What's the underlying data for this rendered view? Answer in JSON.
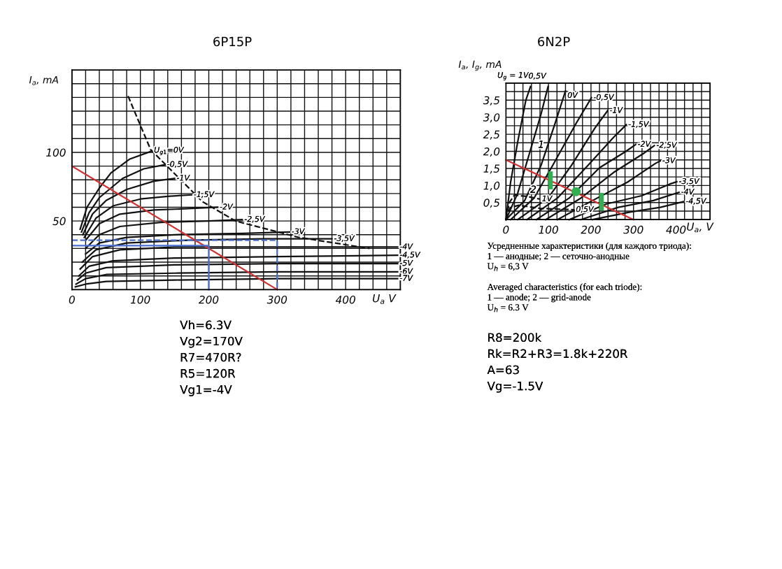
{
  "chart_data": [
    {
      "type": "line",
      "title": "6P15P",
      "xlabel": "U$_{a}$ V",
      "ylabel": "I$_{a}$, mA",
      "xlim": [
        0,
        480
      ],
      "ylim": [
        0,
        160
      ],
      "xticks": [
        0,
        {
          "value": 20,
          "label": null
        },
        {
          "value": 40,
          "label": null
        },
        {
          "value": 60,
          "label": null
        },
        {
          "value": 80,
          "label": null
        },
        100,
        {
          "value": 120,
          "label": null
        },
        {
          "value": 140,
          "label": null
        },
        {
          "value": 160,
          "label": null
        },
        {
          "value": 180,
          "label": null
        },
        200,
        {
          "value": 220,
          "label": null
        },
        {
          "value": 240,
          "label": null
        },
        {
          "value": 260,
          "label": null
        },
        {
          "value": 280,
          "label": null
        },
        300,
        {
          "value": 320,
          "label": null
        },
        {
          "value": 340,
          "label": null
        },
        {
          "value": 360,
          "label": null
        },
        {
          "value": 380,
          "label": null
        },
        400,
        {
          "value": 420,
          "label": null
        },
        {
          "value": 440,
          "label": null
        },
        {
          "value": 460,
          "label": null
        },
        {
          "value": 480,
          "label": null
        }
      ],
      "yticks": [
        {
          "value": 0,
          "label": null
        },
        {
          "value": 10,
          "label": null
        },
        {
          "value": 20,
          "label": null
        },
        {
          "value": 30,
          "label": null
        },
        {
          "value": 40,
          "label": null
        },
        50,
        {
          "value": 60,
          "label": null
        },
        {
          "value": 70,
          "label": null
        },
        {
          "value": 80,
          "label": null
        },
        {
          "value": 90,
          "label": null
        },
        100,
        {
          "value": 110,
          "label": null
        },
        {
          "value": 120,
          "label": null
        },
        {
          "value": 130,
          "label": null
        },
        {
          "value": 140,
          "label": null
        },
        {
          "value": 150,
          "label": null
        },
        {
          "value": 160,
          "label": null
        }
      ],
      "grid": true,
      "legend": false,
      "marker": "none",
      "series": [
        {
          "name": "U$_{g1}$=0V",
          "color": "#111111",
          "x": [
            12,
            22,
            40,
            57,
            84,
            117
          ],
          "values": [
            44,
            60,
            74,
            85,
            95,
            101
          ]
        },
        {
          "name": "-0,5V",
          "color": "#111111",
          "x": [
            14,
            25,
            40,
            74,
            105,
            136
          ],
          "values": [
            42,
            56,
            67,
            81,
            88,
            91
          ]
        },
        {
          "name": "-1V",
          "color": "#111111",
          "x": [
            16,
            30,
            50,
            80,
            120,
            150
          ],
          "values": [
            40,
            55,
            65,
            73,
            79,
            81
          ]
        },
        {
          "name": "-1,5V",
          "color": "#111111",
          "x": [
            18,
            35,
            60,
            100,
            140,
            175
          ],
          "values": [
            38,
            52,
            61,
            66,
            68,
            69
          ]
        },
        {
          "name": "-2V",
          "color": "#111111",
          "x": [
            20,
            40,
            70,
            120,
            170,
            213
          ],
          "values": [
            36,
            48,
            55,
            58,
            59,
            60
          ]
        },
        {
          "name": "-2,5V",
          "color": "#111111",
          "x": [
            20,
            40,
            70,
            130,
            200,
            249
          ],
          "values": [
            30,
            40,
            46,
            49,
            50,
            51
          ]
        },
        {
          "name": "-3V",
          "color": "#111111",
          "x": [
            20,
            40,
            80,
            150,
            250,
            318
          ],
          "values": [
            26,
            34,
            38,
            40,
            41,
            42
          ]
        },
        {
          "name": "-3,5V",
          "color": "#111111",
          "x": [
            15,
            35,
            80,
            170,
            280,
            380
          ],
          "values": [
            20,
            29,
            34,
            36,
            37,
            37
          ]
        },
        {
          "name": "-4V",
          "color": "#111111",
          "x": [
            12,
            30,
            70,
            150,
            300,
            476
          ],
          "values": [
            15,
            24,
            29,
            31,
            31,
            31
          ]
        },
        {
          "name": "-4,5V",
          "color": "#111111",
          "x": [
            10,
            25,
            60,
            150,
            300,
            476
          ],
          "values": [
            10,
            17,
            21,
            23,
            24,
            25
          ]
        },
        {
          "name": "-5V",
          "color": "#111111",
          "x": [
            8,
            20,
            50,
            150,
            300,
            476
          ],
          "values": [
            7,
            12,
            16,
            18,
            19,
            19
          ]
        },
        {
          "name": "-6V",
          "color": "#111111",
          "x": [
            6,
            20,
            50,
            150,
            300,
            476
          ],
          "values": [
            4,
            8,
            11,
            12,
            13,
            13
          ]
        },
        {
          "name": "-7V",
          "color": "#111111",
          "x": [
            5,
            20,
            50,
            150,
            300,
            476
          ],
          "values": [
            2,
            4,
            6,
            7,
            8,
            8
          ]
        },
        {
          "color": "#111111",
          "line_style": "dashed",
          "x": [
            82,
            115,
            191,
            239,
            332,
            435
          ],
          "values": [
            141,
            102,
            64,
            50,
            38,
            30
          ]
        },
        {
          "color": "#d03030",
          "x": [
            0,
            300
          ],
          "values": [
            90,
            0
          ]
        },
        {
          "color": "#4a6fd0",
          "x": [
            0,
            200,
            200
          ],
          "values": [
            32,
            32,
            0
          ]
        },
        {
          "color": "#4a6fd0",
          "line_style": "dashed",
          "x": [
            0,
            300,
            300
          ],
          "values": [
            36,
            36,
            0
          ]
        }
      ],
      "annotations": [
        "Vh=6.3V\nVg2=170V\nR7=470R?\nR5=120R\nVg1=-4V"
      ]
    },
    {
      "type": "line",
      "title": "6N2P",
      "xlabel": "U$_{a}$, V",
      "ylabel": "I$_{a}$, I$_{g}$, mA",
      "xlim": [
        0,
        480
      ],
      "ylim": [
        0,
        4.0
      ],
      "xticks": [
        0,
        {
          "value": 20,
          "label": null
        },
        {
          "value": 40,
          "label": null
        },
        {
          "value": 60,
          "label": null
        },
        {
          "value": 80,
          "label": null
        },
        100,
        {
          "value": 120,
          "label": null
        },
        {
          "value": 140,
          "label": null
        },
        {
          "value": 160,
          "label": null
        },
        {
          "value": 180,
          "label": null
        },
        200,
        {
          "value": 220,
          "label": null
        },
        {
          "value": 240,
          "label": null
        },
        {
          "value": 260,
          "label": null
        },
        {
          "value": 280,
          "label": null
        },
        300,
        {
          "value": 320,
          "label": null
        },
        {
          "value": 340,
          "label": null
        },
        {
          "value": 360,
          "label": null
        },
        {
          "value": 380,
          "label": null
        },
        400,
        {
          "value": 420,
          "label": null
        },
        {
          "value": 440,
          "label": null
        },
        {
          "value": 460,
          "label": null
        },
        {
          "value": 480,
          "label": null
        }
      ],
      "yticks": [
        {
          "value": 0,
          "label": null
        },
        {
          "value": 0.25,
          "label": null
        },
        {
          "value": 0.5,
          "label": "0,5"
        },
        {
          "value": 0.75,
          "label": null
        },
        {
          "value": 1.0,
          "label": "1,0"
        },
        {
          "value": 1.25,
          "label": null
        },
        {
          "value": 1.5,
          "label": "1,5"
        },
        {
          "value": 1.75,
          "label": null
        },
        {
          "value": 2.0,
          "label": "2,0"
        },
        {
          "value": 2.25,
          "label": null
        },
        {
          "value": 2.5,
          "label": "2,5"
        },
        {
          "value": 2.75,
          "label": null
        },
        {
          "value": 3.0,
          "label": "3,0"
        },
        {
          "value": 3.25,
          "label": null
        },
        {
          "value": 3.5,
          "label": "3,5"
        },
        {
          "value": 3.75,
          "label": null
        },
        {
          "value": 4.0,
          "label": null
        }
      ],
      "grid": true,
      "legend": false,
      "marker": "none",
      "series": [
        {
          "name": "U$_{g}$ = 1V",
          "color": "#111111",
          "x": [
            0,
            11,
            27.5,
            46.8,
            57.8
          ],
          "values": [
            0,
            1.1,
            2.27,
            3.5,
            3.9
          ]
        },
        {
          "name": "0,5V",
          "color": "#111111",
          "x": [
            0,
            27.5,
            55,
            82.5,
            99
          ],
          "values": [
            0,
            0.77,
            1.93,
            3.09,
            3.9
          ]
        },
        {
          "name": "0V",
          "color": "#111111",
          "x": [
            0,
            44,
            82.5,
            115.6,
            140
          ],
          "values": [
            0,
            0.56,
            1.59,
            2.82,
            3.77
          ]
        },
        {
          "name": "-0,5V",
          "color": "#111111",
          "x": [
            11,
            66,
            110,
            165,
            201
          ],
          "values": [
            0,
            0.63,
            1.59,
            2.82,
            3.57
          ]
        },
        {
          "name": "-1V",
          "color": "#111111",
          "x": [
            27.5,
            99,
            154,
            209,
            239
          ],
          "values": [
            0,
            0.63,
            1.59,
            2.68,
            3.19
          ]
        },
        {
          "name": "-1,5V",
          "color": "#111111",
          "x": [
            49.5,
            121,
            193,
            253,
            283
          ],
          "values": [
            0,
            0.63,
            1.59,
            2.41,
            2.78
          ]
        },
        {
          "name": "-2V",
          "color": "#111111",
          "x": [
            71.5,
            148.6,
            220,
            281,
            305
          ],
          "values": [
            0,
            0.63,
            1.52,
            1.99,
            2.2
          ]
        },
        {
          "name": "-2,5V",
          "color": "#111111",
          "x": [
            93.6,
            176,
            253,
            325,
            349
          ],
          "values": [
            0,
            0.63,
            1.38,
            1.95,
            2.17
          ]
        },
        {
          "name": "-3V",
          "color": "#111111",
          "x": [
            121,
            203.6,
            286,
            352,
            363
          ],
          "values": [
            0,
            0.56,
            1.1,
            1.65,
            1.72
          ]
        },
        {
          "name": "-3,5V",
          "color": "#111111",
          "x": [
            148.6,
            236.6,
            319,
            385,
            401.8
          ],
          "values": [
            0,
            0.46,
            0.7,
            1.04,
            1.11
          ]
        },
        {
          "name": "-4V",
          "color": "#111111",
          "x": [
            176,
            264,
            346.7,
            407
          ],
          "values": [
            0,
            0.36,
            0.56,
            0.8
          ]
        },
        {
          "name": "-4,5V",
          "color": "#111111",
          "x": [
            203.6,
            291.7,
            363,
            418
          ],
          "values": [
            0,
            0.22,
            0.36,
            0.53
          ]
        },
        {
          "name": "1V",
          "color": "#111111",
          "line_style": "dashed",
          "x": [
            0,
            8,
            20,
            50,
            80
          ],
          "values": [
            0,
            0.5,
            0.72,
            0.68,
            0.6
          ]
        },
        {
          "name": "0,5V",
          "color": "#111111",
          "line_style": "dashed",
          "x": [
            0,
            10,
            30,
            80,
            160
          ],
          "values": [
            0,
            0.35,
            0.42,
            0.33,
            0.29
          ]
        },
        {
          "color": "#d03030",
          "x": [
            0,
            300
          ],
          "values": [
            1.75,
            0
          ]
        },
        {
          "color": "#30b050",
          "x": [
            105,
            105
          ],
          "values": [
            0.95,
            1.35
          ]
        },
        {
          "type": "scatter",
          "color": "#30b050",
          "marker": "circle",
          "x": [
            165
          ],
          "values": [
            0.82
          ]
        },
        {
          "color": "#30b050",
          "x": [
            225,
            225
          ],
          "values": [
            0.33,
            0.72
          ]
        }
      ],
      "annotations": [
        "1",
        "2",
        "Усредненные характеристики (для каждого триода):\n1 — анодные; 2 — сеточно-анодные\nU$_{h}$ = 6,3 V",
        "Averaged characteristics (for each triode):\n1 — anode; 2 — grid-anode\nU$_{h}$ = 6.3 V",
        "R8=200k\nRk=R2+R3=1.8k+220R\nA=63\nVg=-1.5V"
      ]
    }
  ]
}
